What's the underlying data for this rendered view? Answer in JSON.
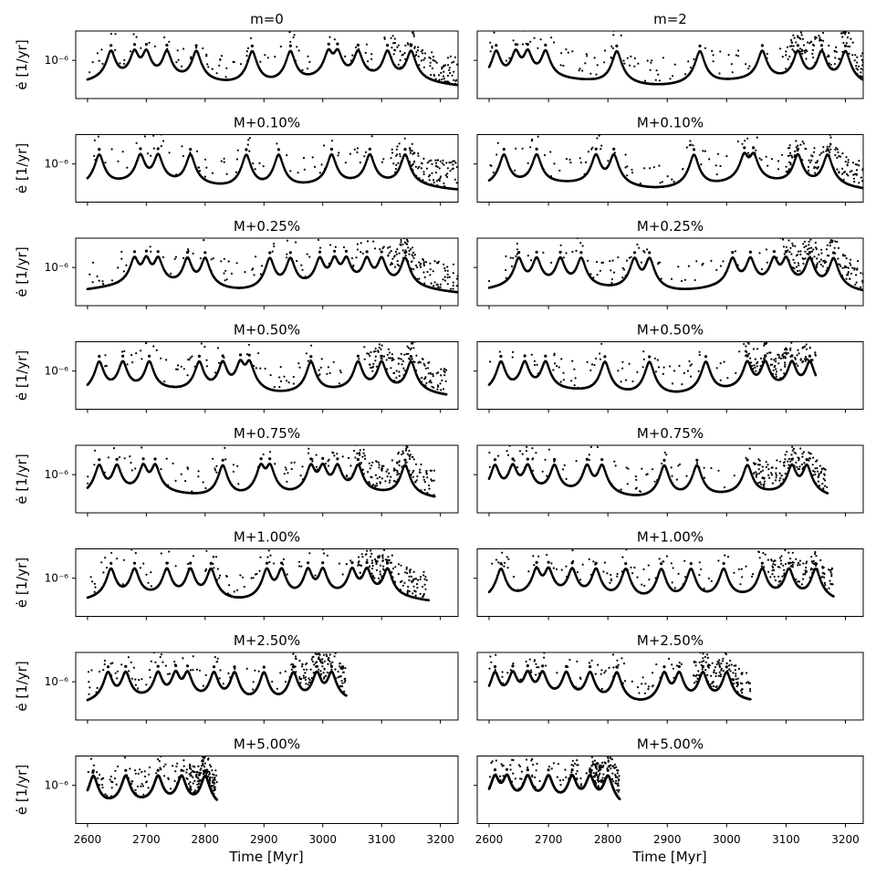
{
  "figure": {
    "xlabel": "Time [Myr]",
    "ylabel": "ė [1/yr]",
    "ytick": "10⁻⁶",
    "xticks": [
      2600,
      2700,
      2800,
      2900,
      3000,
      3100,
      3200
    ],
    "xticks_labels": [
      "2600",
      "2700",
      "2800",
      "2900",
      "3000",
      "3100",
      "3200"
    ],
    "xlim": [
      2580,
      3230
    ],
    "yscale": "log",
    "ylim": [
      5e-08,
      1e-05
    ],
    "marker_color": "#000000"
  },
  "chart_data": [
    {
      "type": "scatter",
      "title": "m=0",
      "column": 0,
      "row": 0,
      "x_range": [
        2600,
        3260
      ],
      "peaks": [
        2640,
        2680,
        2700,
        2735,
        2785,
        2880,
        2945,
        3010,
        3025,
        3060,
        3110,
        3150
      ]
    },
    {
      "type": "scatter",
      "title": "m=2",
      "column": 1,
      "row": 0,
      "x_range": [
        2600,
        3240
      ],
      "peaks": [
        2612,
        2645,
        2665,
        2695,
        2815,
        2955,
        3060,
        3120,
        3160,
        3200
      ]
    },
    {
      "type": "scatter",
      "title": "M+0.10%",
      "column": 0,
      "row": 1,
      "x_range": [
        2600,
        3260
      ],
      "peaks": [
        2620,
        2690,
        2720,
        2775,
        2870,
        2925,
        3015,
        3080,
        3140
      ]
    },
    {
      "type": "scatter",
      "title": "M+0.10%",
      "column": 1,
      "row": 1,
      "x_range": [
        2600,
        3240
      ],
      "peaks": [
        2625,
        2680,
        2780,
        2810,
        2945,
        3030,
        3045,
        3120,
        3170
      ]
    },
    {
      "type": "scatter",
      "title": "M+0.25%",
      "column": 0,
      "row": 2,
      "x_range": [
        2600,
        3255
      ],
      "peaks": [
        2680,
        2700,
        2720,
        2770,
        2800,
        2910,
        2945,
        2995,
        3020,
        3040,
        3075,
        3100,
        3140
      ]
    },
    {
      "type": "scatter",
      "title": "M+0.25%",
      "column": 1,
      "row": 2,
      "x_range": [
        2600,
        3230
      ],
      "peaks": [
        2650,
        2680,
        2720,
        2755,
        2845,
        2870,
        3010,
        3040,
        3080,
        3100,
        3140,
        3180
      ]
    },
    {
      "type": "scatter",
      "title": "M+0.50%",
      "column": 0,
      "row": 3,
      "x_range": [
        2600,
        3210
      ],
      "peaks": [
        2620,
        2660,
        2705,
        2790,
        2830,
        2860,
        2875,
        2980,
        3060,
        3100,
        3150
      ]
    },
    {
      "type": "scatter",
      "title": "M+0.50%",
      "column": 1,
      "row": 3,
      "x_range": [
        2600,
        3150
      ],
      "peaks": [
        2620,
        2660,
        2695,
        2795,
        2870,
        2965,
        3035,
        3065,
        3110,
        3140
      ]
    },
    {
      "type": "scatter",
      "title": "M+0.75%",
      "column": 0,
      "row": 4,
      "x_range": [
        2600,
        3190
      ],
      "peaks": [
        2620,
        2650,
        2695,
        2715,
        2830,
        2895,
        2910,
        2980,
        3000,
        3025,
        3060,
        3140
      ]
    },
    {
      "type": "scatter",
      "title": "M+0.75%",
      "column": 1,
      "row": 4,
      "x_range": [
        2600,
        3170
      ],
      "peaks": [
        2610,
        2640,
        2665,
        2710,
        2765,
        2790,
        2895,
        2950,
        3035,
        3110,
        3135
      ]
    },
    {
      "type": "scatter",
      "title": "M+1.00%",
      "column": 0,
      "row": 5,
      "x_range": [
        2600,
        3180
      ],
      "peaks": [
        2640,
        2680,
        2735,
        2775,
        2810,
        2905,
        2930,
        2975,
        3000,
        3050,
        3075,
        3110
      ]
    },
    {
      "type": "scatter",
      "title": "M+1.00%",
      "column": 1,
      "row": 5,
      "x_range": [
        2600,
        3180
      ],
      "peaks": [
        2620,
        2680,
        2700,
        2740,
        2780,
        2830,
        2890,
        2940,
        2995,
        3060,
        3105,
        3150
      ]
    },
    {
      "type": "scatter",
      "title": "M+2.50%",
      "column": 0,
      "row": 6,
      "x_range": [
        2600,
        3040
      ],
      "peaks": [
        2635,
        2665,
        2720,
        2750,
        2770,
        2815,
        2850,
        2900,
        2950,
        2990,
        3015
      ]
    },
    {
      "type": "scatter",
      "title": "M+2.50%",
      "column": 1,
      "row": 6,
      "x_range": [
        2600,
        3040
      ],
      "peaks": [
        2610,
        2640,
        2665,
        2690,
        2730,
        2770,
        2815,
        2895,
        2920,
        2960,
        3000
      ]
    },
    {
      "type": "scatter",
      "title": "M+5.00%",
      "column": 0,
      "row": 7,
      "x_range": [
        2600,
        2820
      ],
      "peaks": [
        2610,
        2665,
        2720,
        2760,
        2800
      ]
    },
    {
      "type": "scatter",
      "title": "M+5.00%",
      "column": 1,
      "row": 7,
      "x_range": [
        2600,
        2820
      ],
      "peaks": [
        2610,
        2630,
        2665,
        2700,
        2740,
        2770,
        2800
      ]
    }
  ]
}
